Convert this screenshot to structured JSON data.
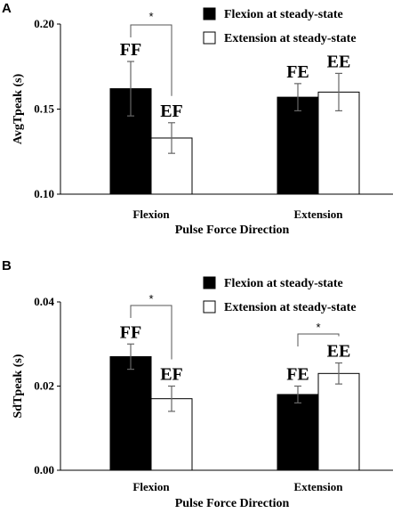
{
  "chart_data": [
    {
      "type": "bar",
      "panel": "A",
      "categories": [
        "Flexion",
        "Extension"
      ],
      "series": [
        {
          "name": "Flexion at steady-state",
          "color": "#000000",
          "values": [
            0.162,
            0.157
          ],
          "errors": [
            0.016,
            0.008
          ],
          "labels": [
            "FF",
            "FE"
          ]
        },
        {
          "name": "Extension at steady-state",
          "color": "#ffffff",
          "values": [
            0.133,
            0.16
          ],
          "errors": [
            0.009,
            0.011
          ],
          "labels": [
            "EF",
            "EE"
          ]
        }
      ],
      "xlabel": "Pulse Force Direction",
      "ylabel": "AvgTpeak (s)",
      "ylim": [
        0.1,
        0.2
      ],
      "yticks": [
        "0.10",
        "0.15",
        "0.20"
      ],
      "significance": [
        {
          "category": "Flexion",
          "text": "*"
        }
      ],
      "legend_position": "top-right"
    },
    {
      "type": "bar",
      "panel": "B",
      "categories": [
        "Flexion",
        "Extension"
      ],
      "series": [
        {
          "name": "Flexion at steady-state",
          "color": "#000000",
          "values": [
            0.027,
            0.018
          ],
          "errors": [
            0.003,
            0.002
          ],
          "labels": [
            "FF",
            "FE"
          ]
        },
        {
          "name": "Extension at steady-state",
          "color": "#ffffff",
          "values": [
            0.017,
            0.023
          ],
          "errors": [
            0.003,
            0.0025
          ],
          "labels": [
            "EF",
            "EE"
          ]
        }
      ],
      "xlabel": "Pulse Force Direction",
      "ylabel": "SdTpeak (s)",
      "ylim": [
        0.0,
        0.04
      ],
      "yticks": [
        "0.00",
        "0.02",
        "0.04"
      ],
      "significance": [
        {
          "category": "Flexion",
          "text": "*"
        },
        {
          "category": "Extension",
          "text": "*"
        }
      ],
      "legend_position": "top-right"
    }
  ]
}
